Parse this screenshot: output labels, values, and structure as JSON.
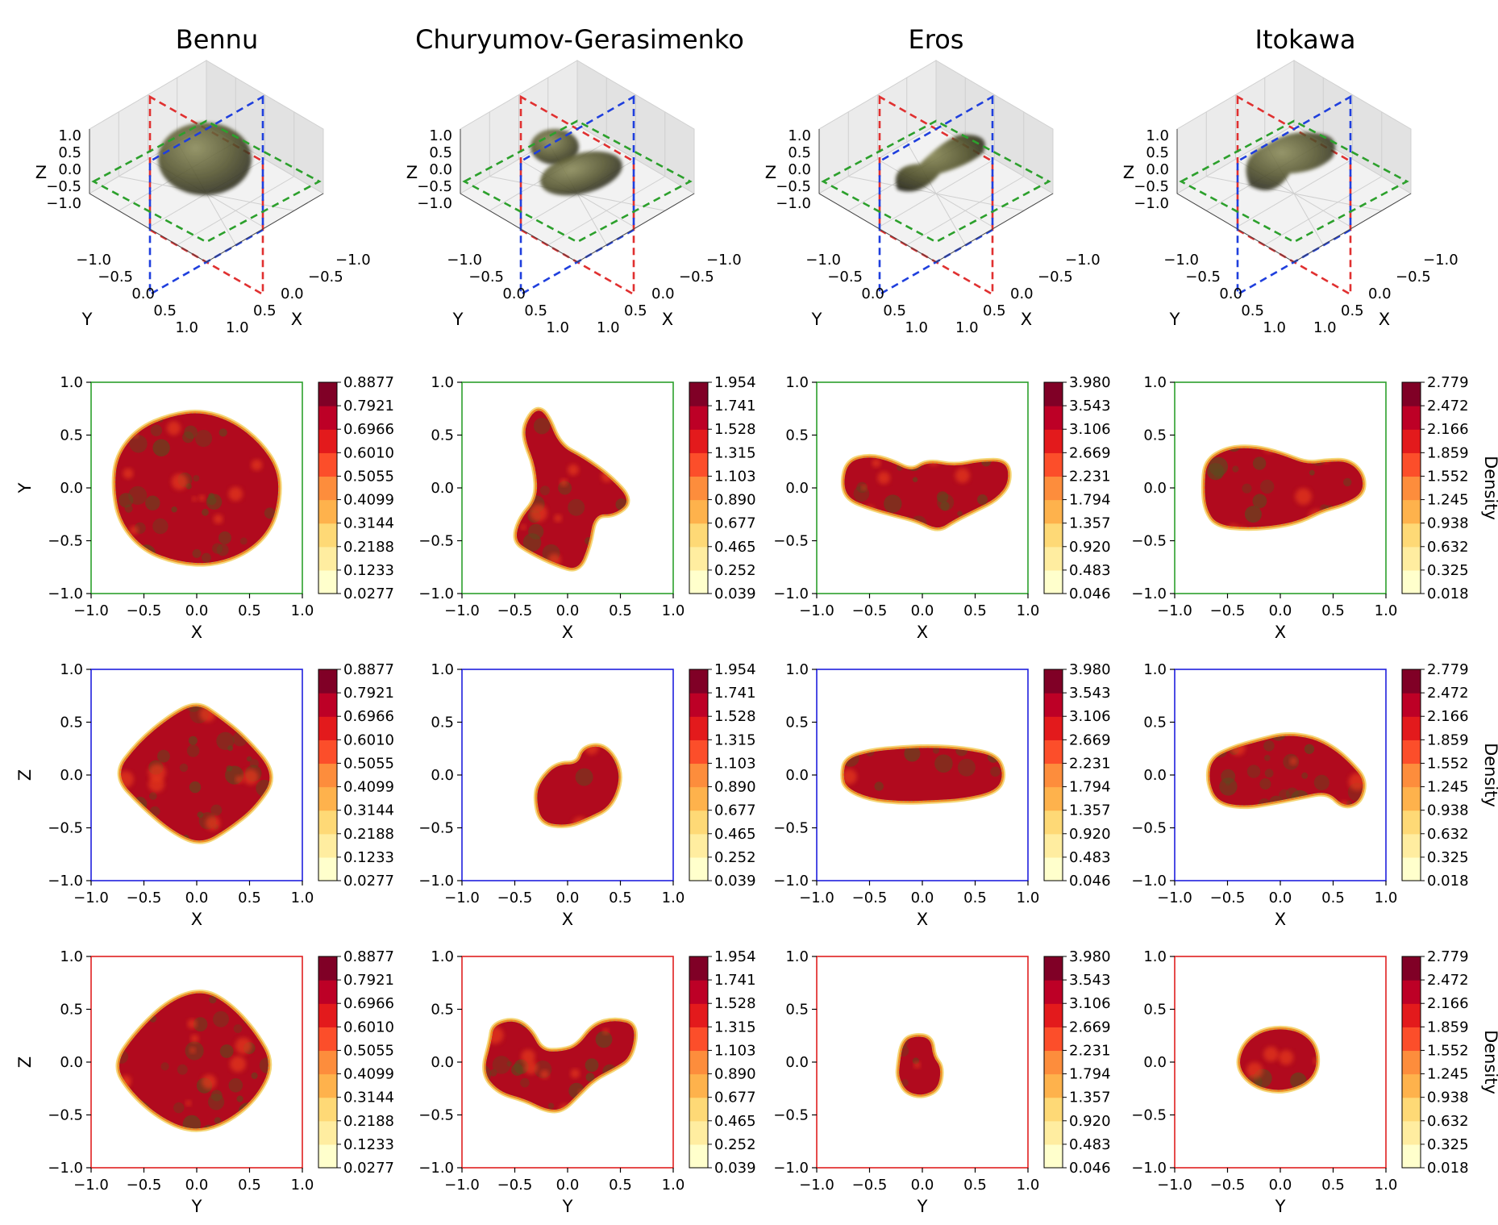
{
  "columns": [
    {
      "name": "Bennu",
      "colorbar_ticks": [
        "0.8877",
        "0.7921",
        "0.6966",
        "0.6010",
        "0.5055",
        "0.4099",
        "0.3144",
        "0.2188",
        "0.1233",
        "0.0277"
      ]
    },
    {
      "name": "Churyumov-Gerasimenko",
      "colorbar_ticks": [
        "1.954",
        "1.741",
        "1.528",
        "1.315",
        "1.103",
        "0.890",
        "0.677",
        "0.465",
        "0.252",
        "0.039"
      ]
    },
    {
      "name": "Eros",
      "colorbar_ticks": [
        "3.980",
        "3.543",
        "3.106",
        "2.669",
        "2.231",
        "1.794",
        "1.357",
        "0.920",
        "0.483",
        "0.046"
      ]
    },
    {
      "name": "Itokawa",
      "colorbar_ticks": [
        "2.779",
        "2.472",
        "2.166",
        "1.859",
        "1.552",
        "1.245",
        "0.938",
        "0.632",
        "0.325",
        "0.018"
      ]
    }
  ],
  "axes3d": {
    "xlabel": "X",
    "ylabel": "Y",
    "zlabel": "Z",
    "x_ticks": [
      "−1.0",
      "−0.5",
      "0.0",
      "0.5",
      "1.0"
    ],
    "y_ticks": [
      "−1.0",
      "−0.5",
      "0.0",
      "0.5",
      "1.0"
    ],
    "z_ticks": [
      "1.0",
      "0.5",
      "0.0",
      "−0.5",
      "−1.0"
    ],
    "plane_colors": {
      "xy": "#2ca02c",
      "xz": "#1f3fdd",
      "yz": "#e03030"
    }
  },
  "colorbar_label": "Density",
  "colormap": [
    "#ffffcc",
    "#ffeda0",
    "#fed976",
    "#feb24c",
    "#fd8d3c",
    "#fc4e2a",
    "#e31a1c",
    "#bd0026",
    "#800026"
  ],
  "chart_data": {
    "type": "heatmap",
    "title": "",
    "xlim": [
      -1.0,
      1.0
    ],
    "ylim": [
      -1.0,
      1.0
    ],
    "tick_values": [
      -1.0,
      -0.5,
      0.0,
      0.5,
      1.0
    ],
    "tick_labels": [
      "−1.0",
      "−0.5",
      "0.0",
      "0.5",
      "1.0"
    ],
    "rows": [
      {
        "plane": "XY",
        "xlabel": "X",
        "ylabel": "Y",
        "frame_color": "#2ca02c"
      },
      {
        "plane": "XZ",
        "xlabel": "X",
        "ylabel": "Z",
        "frame_color": "#1f1fdd"
      },
      {
        "plane": "YZ",
        "xlabel": "Y",
        "ylabel": "Z",
        "frame_color": "#e02020"
      }
    ],
    "shapes": [
      [
        {
          "points": [
            [
              -0.78,
              0.0
            ],
            [
              -0.75,
              0.3
            ],
            [
              -0.55,
              0.55
            ],
            [
              -0.25,
              0.68
            ],
            [
              0.05,
              0.72
            ],
            [
              0.35,
              0.62
            ],
            [
              0.6,
              0.42
            ],
            [
              0.76,
              0.18
            ],
            [
              0.78,
              -0.08
            ],
            [
              0.7,
              -0.38
            ],
            [
              0.48,
              -0.6
            ],
            [
              0.15,
              -0.72
            ],
            [
              -0.18,
              -0.7
            ],
            [
              -0.5,
              -0.58
            ],
            [
              -0.72,
              -0.32
            ]
          ]
        },
        {
          "points": [
            [
              -0.78,
              0.0
            ],
            [
              -0.55,
              0.3
            ],
            [
              -0.25,
              0.55
            ],
            [
              0.0,
              0.68
            ],
            [
              0.2,
              0.55
            ],
            [
              0.45,
              0.35
            ],
            [
              0.75,
              0.0
            ],
            [
              0.55,
              -0.3
            ],
            [
              0.3,
              -0.5
            ],
            [
              0.05,
              -0.65
            ],
            [
              -0.2,
              -0.55
            ],
            [
              -0.5,
              -0.3
            ]
          ]
        },
        {
          "points": [
            [
              -0.78,
              -0.02
            ],
            [
              -0.55,
              0.3
            ],
            [
              -0.25,
              0.58
            ],
            [
              0.05,
              0.68
            ],
            [
              0.3,
              0.55
            ],
            [
              0.55,
              0.28
            ],
            [
              0.72,
              -0.02
            ],
            [
              0.55,
              -0.35
            ],
            [
              0.25,
              -0.58
            ],
            [
              -0.05,
              -0.65
            ],
            [
              -0.35,
              -0.52
            ],
            [
              -0.62,
              -0.28
            ]
          ]
        }
      ],
      [
        {
          "points": [
            [
              -0.4,
              0.6
            ],
            [
              -0.3,
              0.75
            ],
            [
              -0.2,
              0.7
            ],
            [
              -0.08,
              0.4
            ],
            [
              0.15,
              0.28
            ],
            [
              0.4,
              0.1
            ],
            [
              0.6,
              -0.12
            ],
            [
              0.45,
              -0.25
            ],
            [
              0.25,
              -0.25
            ],
            [
              0.2,
              -0.55
            ],
            [
              0.1,
              -0.78
            ],
            [
              -0.1,
              -0.72
            ],
            [
              -0.35,
              -0.6
            ],
            [
              -0.5,
              -0.5
            ],
            [
              -0.45,
              -0.3
            ],
            [
              -0.28,
              -0.1
            ],
            [
              -0.3,
              0.2
            ],
            [
              -0.4,
              0.45
            ]
          ]
        },
        {
          "points": [
            [
              -0.25,
              -0.05
            ],
            [
              -0.1,
              0.1
            ],
            [
              0.1,
              0.1
            ],
            [
              0.15,
              0.25
            ],
            [
              0.32,
              0.28
            ],
            [
              0.45,
              0.15
            ],
            [
              0.5,
              -0.05
            ],
            [
              0.4,
              -0.3
            ],
            [
              0.2,
              -0.4
            ],
            [
              0.0,
              -0.48
            ],
            [
              -0.25,
              -0.45
            ],
            [
              -0.3,
              -0.2
            ]
          ]
        },
        {
          "points": [
            [
              -0.8,
              -0.1
            ],
            [
              -0.72,
              0.2
            ],
            [
              -0.7,
              0.35
            ],
            [
              -0.5,
              0.4
            ],
            [
              -0.35,
              0.3
            ],
            [
              -0.25,
              0.1
            ],
            [
              -0.05,
              0.1
            ],
            [
              0.1,
              0.15
            ],
            [
              0.25,
              0.35
            ],
            [
              0.45,
              0.4
            ],
            [
              0.65,
              0.35
            ],
            [
              0.6,
              0.05
            ],
            [
              0.45,
              -0.05
            ],
            [
              0.25,
              -0.15
            ],
            [
              0.1,
              -0.3
            ],
            [
              -0.05,
              -0.45
            ],
            [
              -0.2,
              -0.45
            ],
            [
              -0.4,
              -0.35
            ],
            [
              -0.65,
              -0.28
            ]
          ]
        }
      ],
      [
        {
          "points": [
            [
              -0.75,
              0.05
            ],
            [
              -0.7,
              0.25
            ],
            [
              -0.5,
              0.3
            ],
            [
              -0.3,
              0.25
            ],
            [
              -0.1,
              0.15
            ],
            [
              0.05,
              0.25
            ],
            [
              0.3,
              0.2
            ],
            [
              0.55,
              0.25
            ],
            [
              0.8,
              0.25
            ],
            [
              0.82,
              0.05
            ],
            [
              0.7,
              -0.1
            ],
            [
              0.5,
              -0.2
            ],
            [
              0.3,
              -0.3
            ],
            [
              0.15,
              -0.4
            ],
            [
              -0.05,
              -0.3
            ],
            [
              -0.25,
              -0.25
            ],
            [
              -0.5,
              -0.18
            ],
            [
              -0.7,
              -0.1
            ]
          ]
        },
        {
          "points": [
            [
              -0.75,
              0.0
            ],
            [
              -0.72,
              0.15
            ],
            [
              -0.5,
              0.22
            ],
            [
              -0.2,
              0.25
            ],
            [
              0.1,
              0.26
            ],
            [
              0.4,
              0.24
            ],
            [
              0.7,
              0.18
            ],
            [
              0.77,
              0.0
            ],
            [
              0.7,
              -0.15
            ],
            [
              0.4,
              -0.22
            ],
            [
              0.1,
              -0.24
            ],
            [
              -0.2,
              -0.25
            ],
            [
              -0.5,
              -0.22
            ],
            [
              -0.72,
              -0.12
            ]
          ]
        },
        {
          "points": [
            [
              -0.22,
              -0.05
            ],
            [
              -0.18,
              0.2
            ],
            [
              -0.05,
              0.25
            ],
            [
              0.08,
              0.22
            ],
            [
              0.1,
              0.05
            ],
            [
              0.18,
              -0.05
            ],
            [
              0.15,
              -0.25
            ],
            [
              0.0,
              -0.32
            ],
            [
              -0.15,
              -0.28
            ],
            [
              -0.22,
              -0.15
            ]
          ]
        }
      ],
      [
        {
          "points": [
            [
              -0.72,
              0.0
            ],
            [
              -0.7,
              0.25
            ],
            [
              -0.5,
              0.37
            ],
            [
              -0.25,
              0.38
            ],
            [
              0.0,
              0.32
            ],
            [
              0.25,
              0.22
            ],
            [
              0.45,
              0.25
            ],
            [
              0.65,
              0.25
            ],
            [
              0.78,
              0.12
            ],
            [
              0.78,
              -0.05
            ],
            [
              0.6,
              -0.15
            ],
            [
              0.4,
              -0.2
            ],
            [
              0.2,
              -0.3
            ],
            [
              0.0,
              -0.35
            ],
            [
              -0.3,
              -0.38
            ],
            [
              -0.6,
              -0.35
            ],
            [
              -0.7,
              -0.2
            ]
          ]
        },
        {
          "points": [
            [
              -0.68,
              -0.05
            ],
            [
              -0.65,
              0.15
            ],
            [
              -0.45,
              0.25
            ],
            [
              -0.2,
              0.32
            ],
            [
              0.05,
              0.38
            ],
            [
              0.3,
              0.35
            ],
            [
              0.5,
              0.25
            ],
            [
              0.65,
              0.12
            ],
            [
              0.8,
              -0.05
            ],
            [
              0.75,
              -0.25
            ],
            [
              0.6,
              -0.3
            ],
            [
              0.45,
              -0.15
            ],
            [
              0.2,
              -0.2
            ],
            [
              -0.05,
              -0.25
            ],
            [
              -0.35,
              -0.3
            ],
            [
              -0.6,
              -0.25
            ]
          ]
        },
        {
          "points": [
            [
              -0.4,
              -0.05
            ],
            [
              -0.35,
              0.15
            ],
            [
              -0.2,
              0.28
            ],
            [
              0.0,
              0.32
            ],
            [
              0.2,
              0.28
            ],
            [
              0.33,
              0.15
            ],
            [
              0.35,
              -0.05
            ],
            [
              0.25,
              -0.2
            ],
            [
              0.0,
              -0.28
            ],
            [
              -0.25,
              -0.22
            ]
          ]
        }
      ]
    ]
  }
}
